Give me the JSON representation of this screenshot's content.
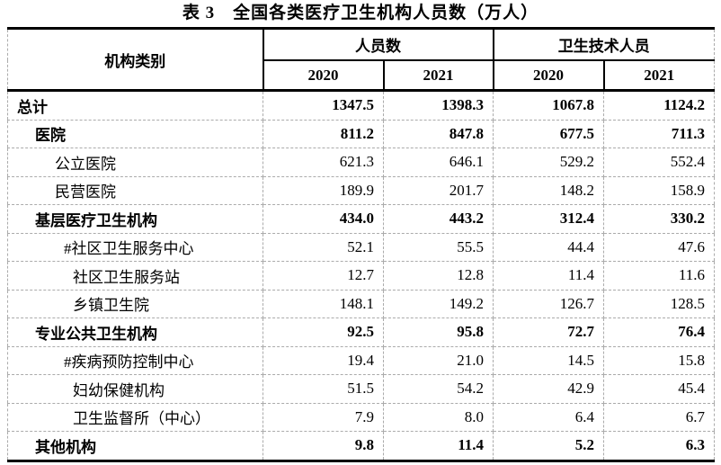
{
  "title": "表 3　全国各类医疗卫生机构人员数（万人）",
  "colors": {
    "text": "#000000",
    "heavy_border": "#000000",
    "dashed_grid": "#ababab"
  },
  "table": {
    "corner_header": "机构类别",
    "group_headers": [
      "人员数",
      "卫生技术人员"
    ],
    "year_headers": [
      "2020",
      "2021",
      "2020",
      "2021"
    ],
    "rows": [
      {
        "label": "总计",
        "values": [
          "1347.5",
          "1398.3",
          "1067.8",
          "1124.2"
        ]
      },
      {
        "label": "医院",
        "values": [
          "811.2",
          "847.8",
          "677.5",
          "711.3"
        ]
      },
      {
        "label": "公立医院",
        "values": [
          "621.3",
          "646.1",
          "529.2",
          "552.4"
        ]
      },
      {
        "label": "民营医院",
        "values": [
          "189.9",
          "201.7",
          "148.2",
          "158.9"
        ]
      },
      {
        "label": "基层医疗卫生机构",
        "values": [
          "434.0",
          "443.2",
          "312.4",
          "330.2"
        ]
      },
      {
        "label": "#社区卫生服务中心",
        "values": [
          "52.1",
          "55.5",
          "44.4",
          "47.6"
        ]
      },
      {
        "label": "社区卫生服务站",
        "values": [
          "12.7",
          "12.8",
          "11.4",
          "11.6"
        ]
      },
      {
        "label": "乡镇卫生院",
        "values": [
          "148.1",
          "149.2",
          "126.7",
          "128.5"
        ]
      },
      {
        "label": "专业公共卫生机构",
        "values": [
          "92.5",
          "95.8",
          "72.7",
          "76.4"
        ]
      },
      {
        "label": "#疾病预防控制中心",
        "values": [
          "19.4",
          "21.0",
          "14.5",
          "15.8"
        ]
      },
      {
        "label": "妇幼保健机构",
        "values": [
          "51.5",
          "54.2",
          "42.9",
          "45.4"
        ]
      },
      {
        "label": "卫生监督所（中心）",
        "values": [
          "7.9",
          "8.0",
          "6.4",
          "6.7"
        ]
      },
      {
        "label": "其他机构",
        "values": [
          "9.8",
          "11.4",
          "5.2",
          "6.3"
        ]
      }
    ]
  }
}
